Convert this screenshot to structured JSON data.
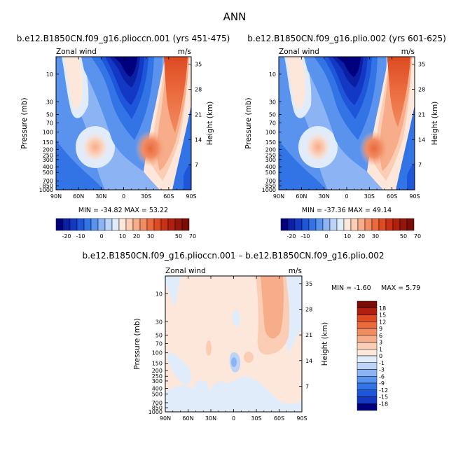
{
  "page_title": "ANN",
  "chart_data": [
    {
      "type": "heatmap",
      "title": "b.e12.B1850CN.f09_g16.plioccn.001 (yrs 451-475)",
      "left_label": "Zonal wind",
      "right_label": "m/s",
      "ylabel": "Pressure (mb)",
      "y2label": "Height (km)",
      "x_ticks": [
        "90N",
        "60N",
        "30N",
        "0",
        "30S",
        "60S",
        "90S"
      ],
      "y_ticks": [
        "10",
        "30",
        "50",
        "70",
        "100",
        "150",
        "200",
        "250",
        "300",
        "400",
        "500",
        "700",
        "850",
        "1000"
      ],
      "y2_ticks": [
        "35",
        "28",
        "21",
        "14",
        "7"
      ],
      "min_max": "MIN = -34.82   MAX = 53.22",
      "colorbar": {
        "orientation": "horizontal",
        "levels": [
          -25,
          -20,
          -15,
          -10,
          -5,
          -2,
          0,
          2,
          5,
          10,
          15,
          20,
          25,
          30,
          35,
          40,
          45,
          50,
          60,
          70
        ],
        "labels": [
          "-20",
          "-10",
          "0",
          "10",
          "20",
          "30",
          "50",
          "70"
        ]
      },
      "colors": [
        "#00007f",
        "#0a1fa5",
        "#1238c4",
        "#1d56d8",
        "#3274e6",
        "#5a93ee",
        "#8cb3f4",
        "#bcd4f8",
        "#e1ecfb",
        "#fde7da",
        "#fbcdb4",
        "#f7ad8a",
        "#f28c62",
        "#ea6a3d",
        "#de4a22",
        "#c93016",
        "#b1200e",
        "#94150a",
        "#7a0c06"
      ]
    },
    {
      "type": "heatmap",
      "title": "b.e12.B1850CN.f09_g16.plio.002 (yrs 601-625)",
      "left_label": "Zonal wind",
      "right_label": "m/s",
      "ylabel": "Pressure (mb)",
      "y2label": "Height (km)",
      "x_ticks": [
        "90N",
        "60N",
        "30N",
        "0",
        "30S",
        "60S",
        "90S"
      ],
      "y_ticks": [
        "10",
        "30",
        "50",
        "70",
        "100",
        "150",
        "200",
        "250",
        "300",
        "400",
        "500",
        "700",
        "850",
        "1000"
      ],
      "y2_ticks": [
        "35",
        "28",
        "21",
        "14",
        "7"
      ],
      "min_max": "MIN = -37.36   MAX = 49.14",
      "colorbar": {
        "orientation": "horizontal",
        "levels": [
          -25,
          -20,
          -15,
          -10,
          -5,
          -2,
          0,
          2,
          5,
          10,
          15,
          20,
          25,
          30,
          35,
          40,
          45,
          50,
          60,
          70
        ],
        "labels": [
          "-20",
          "-10",
          "0",
          "10",
          "20",
          "30",
          "50",
          "70"
        ]
      }
    },
    {
      "type": "heatmap",
      "title": "b.e12.B1850CN.f09_g16.plioccn.001 – b.e12.B1850CN.f09_g16.plio.002",
      "left_label": "Zonal wind",
      "right_label": "m/s",
      "ylabel": "Pressure (mb)",
      "y2label": "Height (km)",
      "x_ticks": [
        "90N",
        "60N",
        "30N",
        "0",
        "30S",
        "60S",
        "90S"
      ],
      "y_ticks": [
        "10",
        "30",
        "50",
        "70",
        "100",
        "150",
        "200",
        "250",
        "300",
        "400",
        "500",
        "700",
        "850",
        "1000"
      ],
      "y2_ticks": [
        "35",
        "28",
        "21",
        "14",
        "7"
      ],
      "min": "MIN =  -1.60",
      "max": "MAX =   5.79",
      "colorbar": {
        "orientation": "vertical",
        "labels": [
          "18",
          "15",
          "12",
          "9",
          "6",
          "3",
          "1",
          "0",
          "-1",
          "-3",
          "-6",
          "-9",
          "-12",
          "-15",
          "-18"
        ]
      }
    }
  ]
}
